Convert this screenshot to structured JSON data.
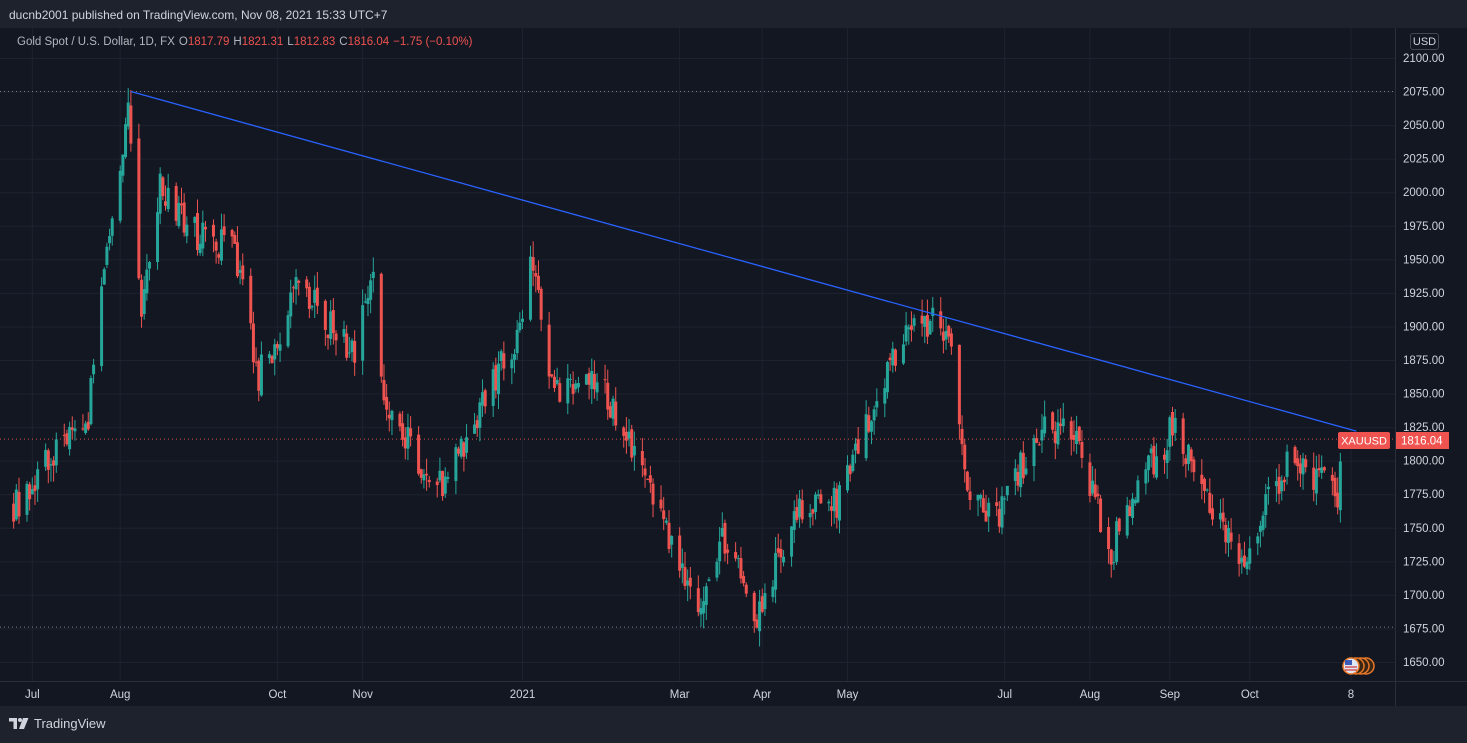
{
  "header": {
    "publisher": "ducnb2001 published on TradingView.com, Nov 08, 2021 15:33 UTC+7"
  },
  "legend": {
    "title": "Gold Spot / U.S. Dollar, 1D, FX",
    "o_label": "O",
    "o_value": "1817.79",
    "h_label": "H",
    "h_value": "1821.31",
    "l_label": "L",
    "l_value": "1812.83",
    "c_label": "C",
    "c_value": "1816.04",
    "change": "−1.75 (−0.10%)"
  },
  "currency": "USD",
  "price_label": {
    "symbol": "XAUUSD",
    "value": "1816.04"
  },
  "footer": {
    "brand": "TradingView"
  },
  "colors": {
    "up": "#26a69a",
    "down": "#ef5350",
    "trendline": "#2962ff",
    "background": "#131722"
  },
  "chart_data": {
    "type": "candlestick",
    "symbol": "XAUUSD",
    "interval": "1D",
    "y_ticks": [
      1650,
      1675,
      1700,
      1725,
      1750,
      1775,
      1800,
      1825,
      1850,
      1875,
      1900,
      1925,
      1950,
      1975,
      2000,
      2025,
      2050,
      2075,
      2100
    ],
    "y_tick_labels": [
      "1650.00",
      "1675.00",
      "1700.00",
      "1725.00",
      "1750.00",
      "1775.00",
      "1800.00",
      "1825.00",
      "1850.00",
      "1875.00",
      "1900.00",
      "1925.00",
      "1950.00",
      "1975.00",
      "2000.00",
      "2025.00",
      "2050.00",
      "2075.00",
      "2100.00"
    ],
    "ylim": [
      1640,
      2112
    ],
    "x_ticks": [
      {
        "label": "Jul",
        "date": "2020-07-01"
      },
      {
        "label": "Aug",
        "date": "2020-08-03"
      },
      {
        "label": "Oct",
        "date": "2020-10-01"
      },
      {
        "label": "Nov",
        "date": "2020-11-02"
      },
      {
        "label": "2021",
        "date": "2021-01-01"
      },
      {
        "label": "Mar",
        "date": "2021-03-01"
      },
      {
        "label": "Apr",
        "date": "2021-04-01"
      },
      {
        "label": "May",
        "date": "2021-05-03"
      },
      {
        "label": "Jul",
        "date": "2021-07-01"
      },
      {
        "label": "Aug",
        "date": "2021-08-02"
      },
      {
        "label": "Sep",
        "date": "2021-09-01"
      },
      {
        "label": "Oct",
        "date": "2021-10-01"
      },
      {
        "label": "8",
        "date": "2021-11-08"
      }
    ],
    "anchors": [
      {
        "date": "2020-06-24",
        "close": 1765
      },
      {
        "date": "2020-07-08",
        "close": 1808
      },
      {
        "date": "2020-07-21",
        "close": 1820
      },
      {
        "date": "2020-07-29",
        "close": 1950
      },
      {
        "date": "2020-08-06",
        "close": 2068
      },
      {
        "date": "2020-08-11",
        "close": 1912
      },
      {
        "date": "2020-08-18",
        "close": 2005
      },
      {
        "date": "2020-09-01",
        "close": 1968
      },
      {
        "date": "2020-09-15",
        "close": 1955
      },
      {
        "date": "2020-09-24",
        "close": 1862
      },
      {
        "date": "2020-10-09",
        "close": 1930
      },
      {
        "date": "2020-10-30",
        "close": 1878
      },
      {
        "date": "2020-11-06",
        "close": 1952
      },
      {
        "date": "2020-11-09",
        "close": 1855
      },
      {
        "date": "2020-11-30",
        "close": 1776
      },
      {
        "date": "2020-12-31",
        "close": 1898
      },
      {
        "date": "2021-01-05",
        "close": 1950
      },
      {
        "date": "2021-01-11",
        "close": 1850
      },
      {
        "date": "2021-01-29",
        "close": 1862
      },
      {
        "date": "2021-02-18",
        "close": 1775
      },
      {
        "date": "2021-03-08",
        "close": 1683
      },
      {
        "date": "2021-03-17",
        "close": 1745
      },
      {
        "date": "2021-03-30",
        "close": 1685
      },
      {
        "date": "2021-04-15",
        "close": 1765
      },
      {
        "date": "2021-04-30",
        "close": 1770
      },
      {
        "date": "2021-05-18",
        "close": 1868
      },
      {
        "date": "2021-05-31",
        "close": 1907
      },
      {
        "date": "2021-06-10",
        "close": 1895
      },
      {
        "date": "2021-06-17",
        "close": 1775
      },
      {
        "date": "2021-06-29",
        "close": 1760
      },
      {
        "date": "2021-07-15",
        "close": 1828
      },
      {
        "date": "2021-07-30",
        "close": 1812
      },
      {
        "date": "2021-08-09",
        "close": 1727
      },
      {
        "date": "2021-08-20",
        "close": 1782
      },
      {
        "date": "2021-09-03",
        "close": 1826
      },
      {
        "date": "2021-09-10",
        "close": 1788
      },
      {
        "date": "2021-09-29",
        "close": 1727
      },
      {
        "date": "2021-10-14",
        "close": 1795
      },
      {
        "date": "2021-10-22",
        "close": 1796
      },
      {
        "date": "2021-11-03",
        "close": 1769
      },
      {
        "date": "2021-11-05",
        "close": 1816
      }
    ],
    "trendline": {
      "from": {
        "date": "2020-08-07",
        "price": 2075
      },
      "to": {
        "date": "2021-11-10",
        "price": 1822
      }
    },
    "horizontal_levels": [
      2075,
      1816.04,
      1676
    ],
    "last_close": 1816.04,
    "grid": true
  }
}
